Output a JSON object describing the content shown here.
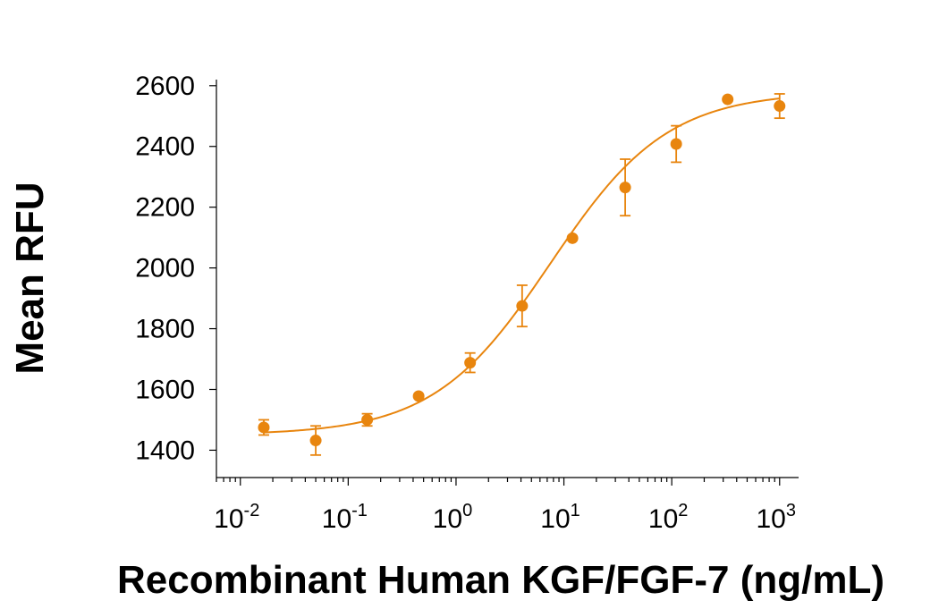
{
  "chart_data": {
    "type": "scatter",
    "title": "",
    "xlabel": "Recombinant Human KGF/FGF-7 (ng/mL)",
    "ylabel": "Mean RFU",
    "x_scale": "log",
    "xlim": [
      0.006,
      1500
    ],
    "ylim": [
      1310,
      2620
    ],
    "x_ticks": [
      {
        "base": "10",
        "exp": "-2"
      },
      {
        "base": "10",
        "exp": "-1"
      },
      {
        "base": "10",
        "exp": "0"
      },
      {
        "base": "10",
        "exp": "1"
      },
      {
        "base": "10",
        "exp": "2"
      },
      {
        "base": "10",
        "exp": "3"
      }
    ],
    "x_tick_values": [
      0.01,
      0.1,
      1,
      10,
      100,
      1000
    ],
    "y_ticks": [
      "1400",
      "1600",
      "1800",
      "2000",
      "2200",
      "2400",
      "2600"
    ],
    "y_tick_values": [
      1400,
      1600,
      1800,
      2000,
      2200,
      2400,
      2600
    ],
    "color": "#E8850E",
    "grid": false,
    "series": [
      {
        "x": [
          0.0165,
          0.05,
          0.15,
          0.45,
          1.35,
          4.1,
          12,
          37,
          110,
          330,
          1000
        ],
        "y": [
          1475,
          1432,
          1500,
          1578,
          1688,
          1875,
          2098,
          2265,
          2408,
          2555,
          2533
        ],
        "error": [
          25,
          48,
          20,
          0,
          32,
          68,
          0,
          93,
          60,
          0,
          40
        ]
      }
    ],
    "fit_curve": {
      "type": "4PL",
      "bottom": 1450,
      "top": 2580,
      "ec50": 7.5,
      "hill": 0.8,
      "x_range": [
        0.0165,
        1000
      ]
    }
  }
}
